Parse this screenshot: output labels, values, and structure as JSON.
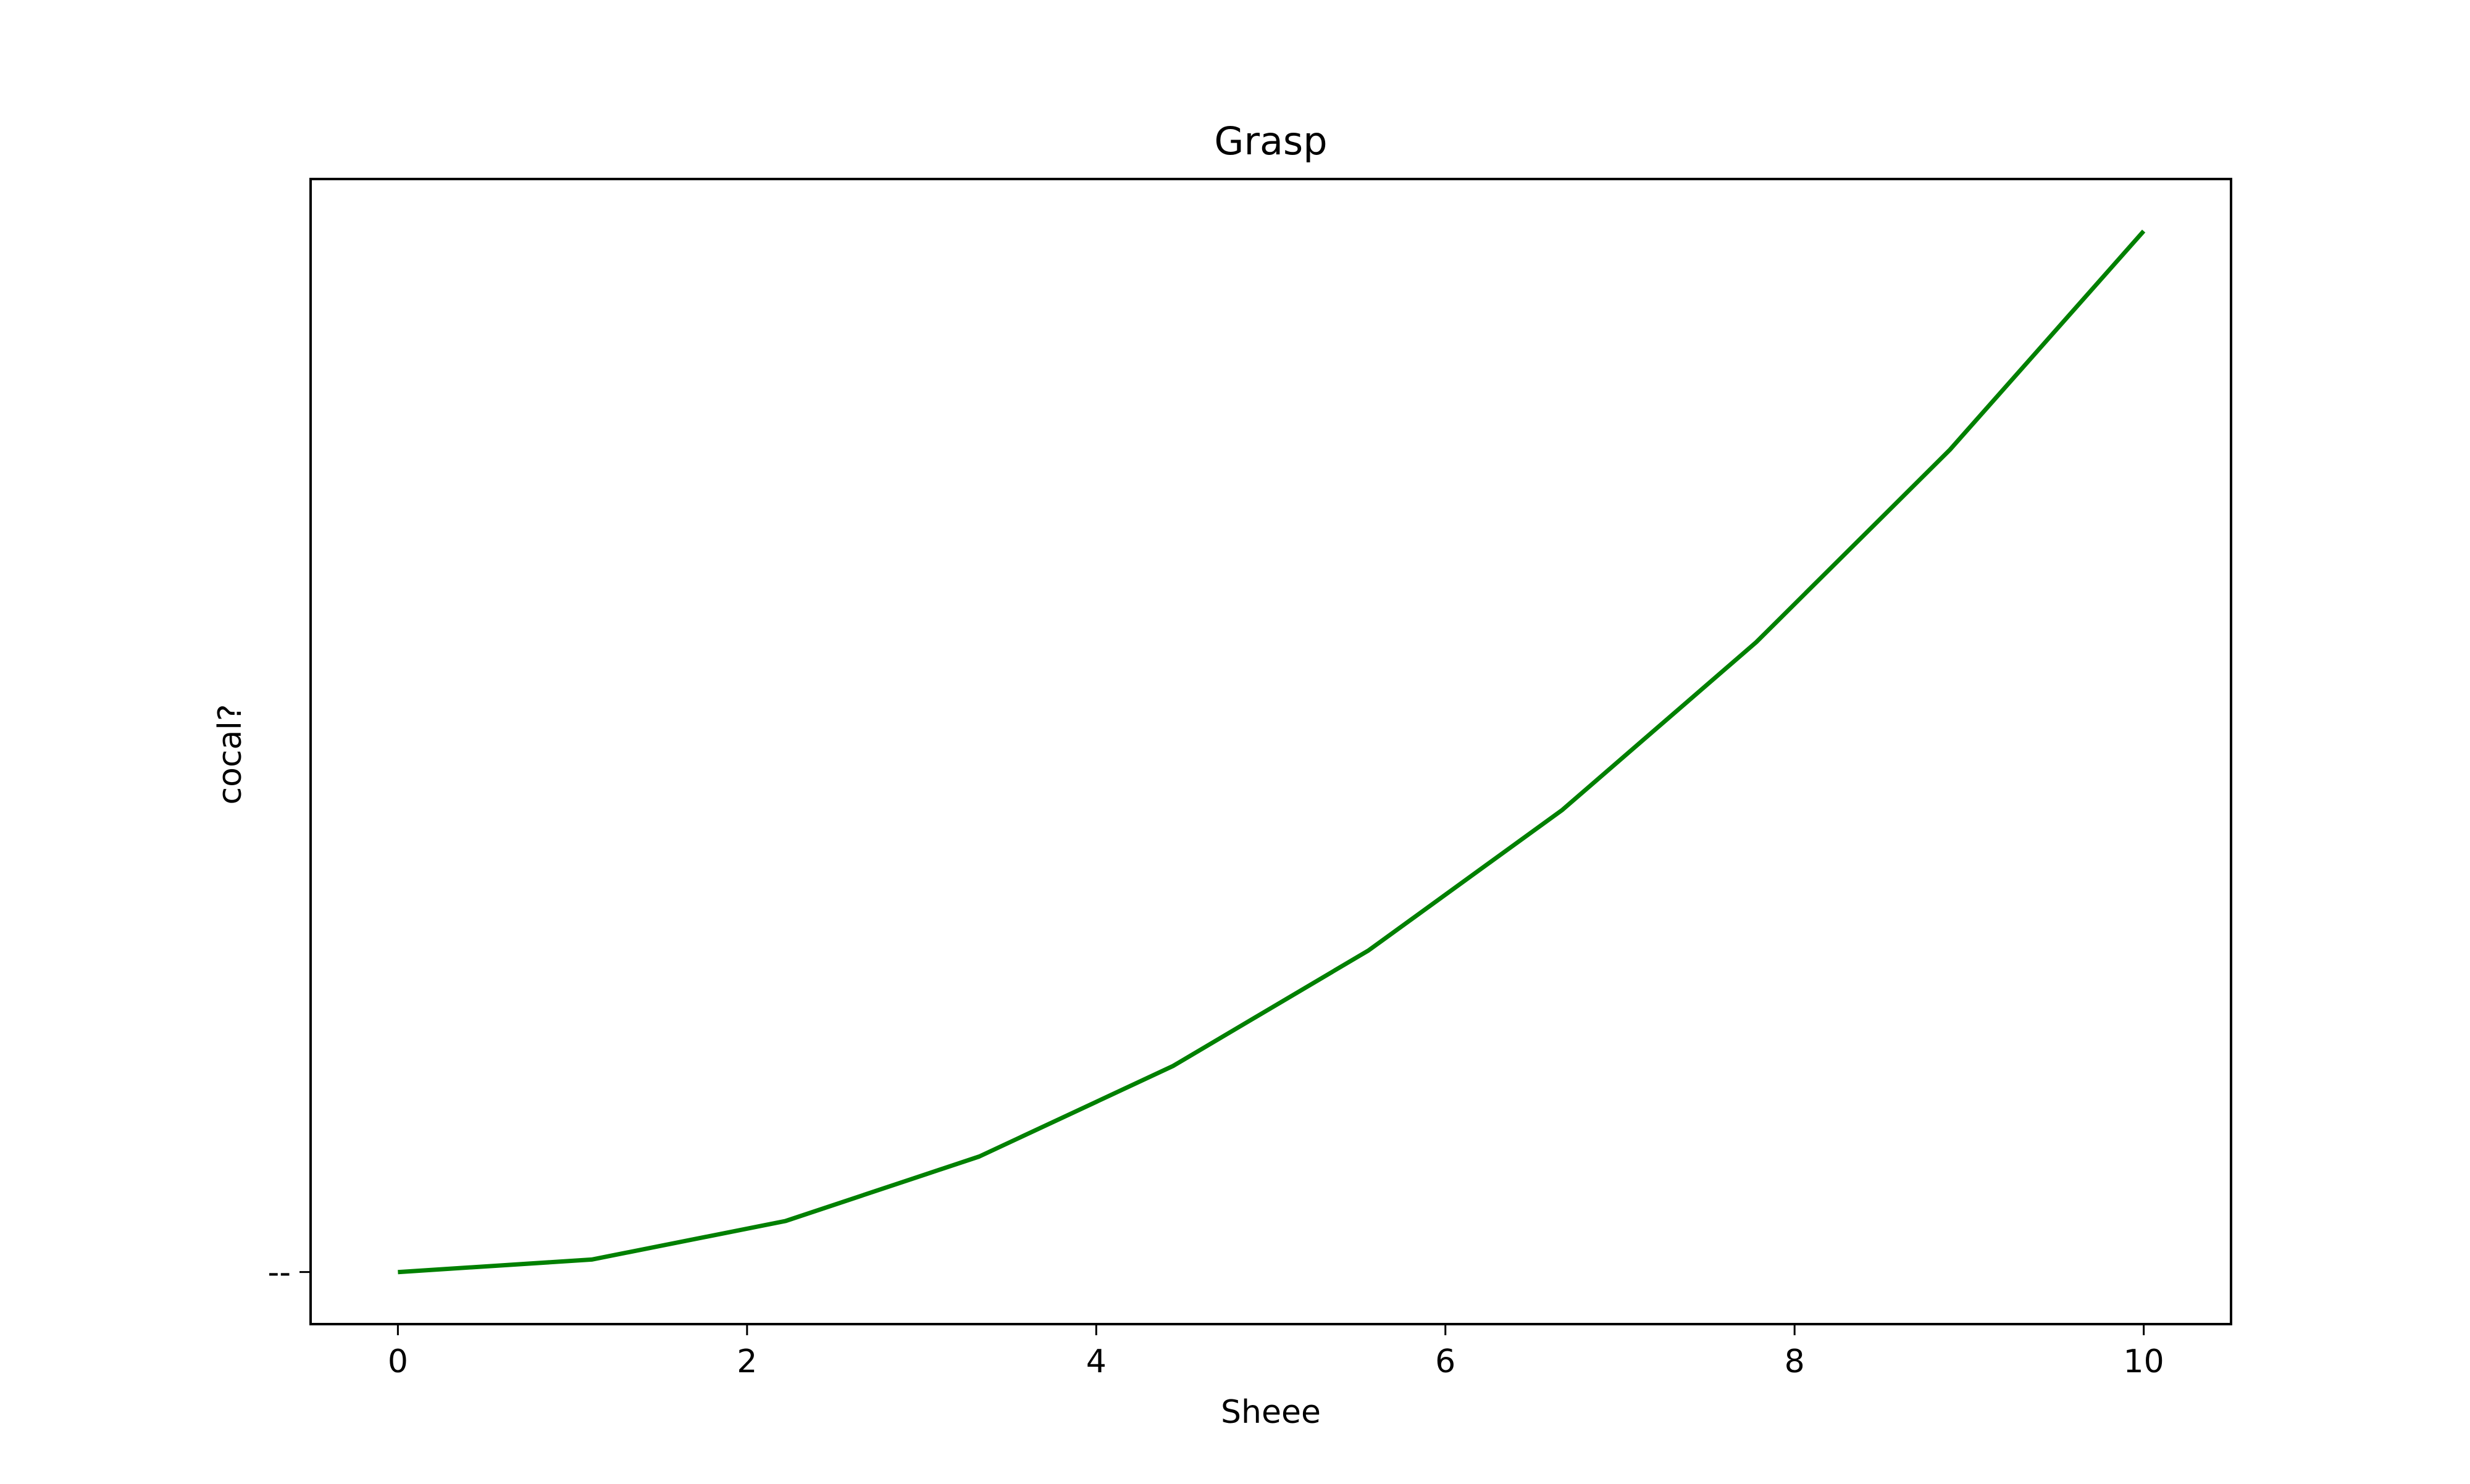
{
  "chart_data": {
    "type": "line",
    "title": "Grasp",
    "xlabel": "Sheee",
    "ylabel": "cocal?",
    "xlim": [
      -0.5,
      10.5
    ],
    "ylim": [
      -5,
      105
    ],
    "x_ticks": [
      "0",
      "2",
      "4",
      "6",
      "8",
      "10"
    ],
    "y_ticks": [
      {
        "value": 0,
        "label": "--"
      }
    ],
    "grid": false,
    "legend": "none",
    "series": [
      {
        "color": "#008000",
        "x": [
          0,
          1.11,
          2.22,
          3.33,
          4.44,
          5.56,
          6.67,
          7.78,
          8.89,
          10
        ],
        "y": [
          0,
          1.2,
          4.9,
          11.1,
          19.8,
          30.9,
          44.4,
          60.5,
          79.0,
          100
        ]
      }
    ]
  }
}
